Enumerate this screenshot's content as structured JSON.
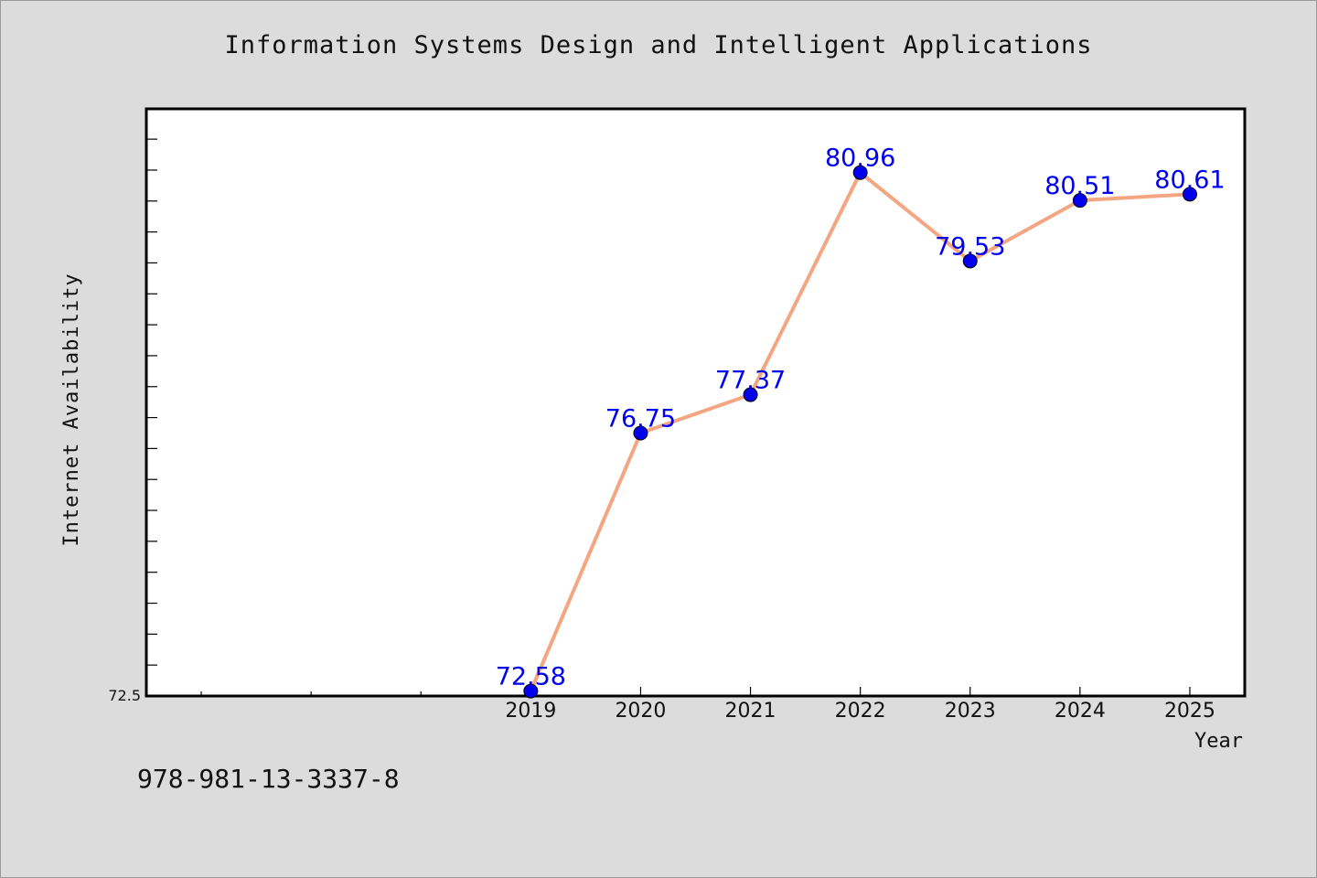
{
  "title": "Information Systems Design and Intelligent Applications",
  "footnote": "978-981-13-3337-8",
  "colors": {
    "background": "#dcdcdc",
    "plot_background": "#ffffff",
    "line": "#f4a582",
    "marker": "#0000ee",
    "data_label": "#0000ee"
  },
  "chart_data": {
    "type": "line",
    "title": "Information Systems Design and Intelligent Applications",
    "xlabel": "Year",
    "ylabel": "Internet Availability",
    "x_domain": [
      2015.5,
      2025.5
    ],
    "x_ticks": [
      2019,
      2020,
      2021,
      2022,
      2023,
      2024,
      2025
    ],
    "x_tick_labels": [
      "2019",
      "2020",
      "2021",
      "2022",
      "2023",
      "2024",
      "2025"
    ],
    "ylim": [
      72.5,
      81.99
    ],
    "y_tick_labels": [
      "72.5"
    ],
    "grid": false,
    "series": [
      {
        "x": [
          2019,
          2020,
          2021,
          2022,
          2023,
          2024,
          2025
        ],
        "y": [
          72.58,
          76.75,
          77.37,
          80.96,
          79.53,
          80.51,
          80.61
        ],
        "labels": [
          "72.58",
          "76.75",
          "77.37",
          "80.96",
          "79.53",
          "80.51",
          "80.61"
        ]
      }
    ]
  }
}
